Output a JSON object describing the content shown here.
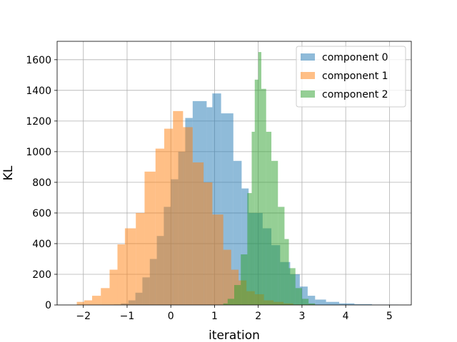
{
  "chart_data": {
    "type": "histogram",
    "title": "",
    "xlabel": "iteration",
    "ylabel": "KL",
    "xlim": [
      -2.6,
      5.5
    ],
    "ylim": [
      0,
      1720
    ],
    "xticks": [
      -2,
      -1,
      0,
      1,
      2,
      3,
      4,
      5
    ],
    "yticks": [
      0,
      200,
      400,
      600,
      800,
      1000,
      1200,
      1400,
      1600
    ],
    "grid": true,
    "legend_position": "top-right",
    "series": [
      {
        "name": "component 0",
        "color": "#1f77b4",
        "bins": [
          [
            -1.3,
            -1.14,
            3
          ],
          [
            -1.14,
            -0.97,
            10
          ],
          [
            -0.97,
            -0.81,
            30
          ],
          [
            -0.81,
            -0.65,
            80
          ],
          [
            -0.65,
            -0.48,
            180
          ],
          [
            -0.48,
            -0.32,
            300
          ],
          [
            -0.32,
            -0.16,
            450
          ],
          [
            -0.16,
            0.0,
            640
          ],
          [
            0.0,
            0.17,
            820
          ],
          [
            0.17,
            0.33,
            1000
          ],
          [
            0.33,
            0.5,
            1220
          ],
          [
            0.5,
            0.82,
            1330
          ],
          [
            0.82,
            0.95,
            1290
          ],
          [
            0.95,
            1.15,
            1380
          ],
          [
            1.15,
            1.43,
            1250
          ],
          [
            1.43,
            1.62,
            940
          ],
          [
            1.62,
            1.78,
            760
          ],
          [
            1.78,
            2.1,
            600
          ],
          [
            2.1,
            2.3,
            500
          ],
          [
            2.3,
            2.5,
            390
          ],
          [
            2.5,
            2.73,
            280
          ],
          [
            2.73,
            2.95,
            200
          ],
          [
            2.95,
            3.13,
            120
          ],
          [
            3.13,
            3.3,
            60
          ],
          [
            3.3,
            3.55,
            35
          ],
          [
            3.55,
            3.85,
            20
          ],
          [
            3.85,
            4.2,
            10
          ],
          [
            4.2,
            4.6,
            5
          ],
          [
            4.6,
            5.2,
            2
          ]
        ]
      },
      {
        "name": "component 1",
        "color": "#ff7f0e",
        "bins": [
          [
            -2.15,
            -1.98,
            20
          ],
          [
            -1.98,
            -1.8,
            30
          ],
          [
            -1.8,
            -1.6,
            60
          ],
          [
            -1.6,
            -1.4,
            110
          ],
          [
            -1.4,
            -1.22,
            230
          ],
          [
            -1.22,
            -1.05,
            395
          ],
          [
            -1.05,
            -0.8,
            500
          ],
          [
            -0.8,
            -0.6,
            600
          ],
          [
            -0.6,
            -0.35,
            870
          ],
          [
            -0.35,
            -0.15,
            1020
          ],
          [
            -0.15,
            0.05,
            1150
          ],
          [
            0.05,
            0.28,
            1265
          ],
          [
            0.28,
            0.5,
            1160
          ],
          [
            0.5,
            0.75,
            930
          ],
          [
            0.75,
            0.95,
            800
          ],
          [
            0.95,
            1.2,
            590
          ],
          [
            1.2,
            1.38,
            360
          ],
          [
            1.38,
            1.55,
            230
          ],
          [
            1.55,
            1.73,
            160
          ],
          [
            1.73,
            1.92,
            90
          ],
          [
            1.92,
            2.13,
            70
          ],
          [
            2.13,
            2.35,
            30
          ],
          [
            2.35,
            2.58,
            20
          ],
          [
            2.58,
            2.8,
            10
          ],
          [
            2.8,
            3.3,
            3
          ]
        ]
      },
      {
        "name": "component 2",
        "color": "#2ca02c",
        "bins": [
          [
            1.2,
            1.3,
            10
          ],
          [
            1.3,
            1.45,
            40
          ],
          [
            1.45,
            1.6,
            130
          ],
          [
            1.6,
            1.75,
            330
          ],
          [
            1.75,
            1.85,
            730
          ],
          [
            1.85,
            1.92,
            1130
          ],
          [
            1.92,
            2.0,
            1470
          ],
          [
            2.0,
            2.07,
            1650
          ],
          [
            2.07,
            2.18,
            1410
          ],
          [
            2.18,
            2.3,
            1130
          ],
          [
            2.3,
            2.45,
            940
          ],
          [
            2.45,
            2.6,
            640
          ],
          [
            2.6,
            2.7,
            430
          ],
          [
            2.7,
            2.85,
            240
          ],
          [
            2.85,
            3.0,
            110
          ],
          [
            3.0,
            3.15,
            40
          ],
          [
            3.15,
            3.3,
            10
          ]
        ]
      }
    ]
  }
}
